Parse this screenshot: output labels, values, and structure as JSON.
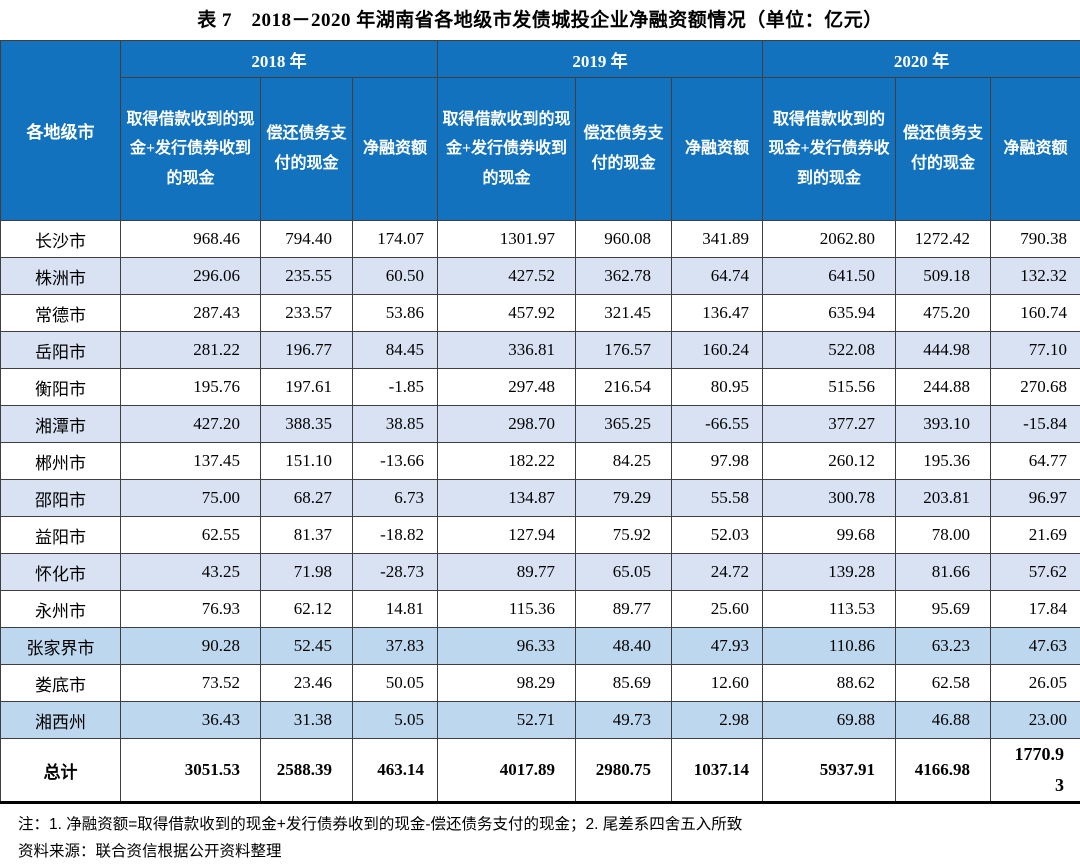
{
  "title": "表 7　2018－2020 年湖南省各地级市发债城投企业净融资额情况（单位：亿元）",
  "table": {
    "corner_header": "各地级市",
    "year_groups": [
      "2018 年",
      "2019 年",
      "2020 年"
    ],
    "sub_headers": [
      "取得借款收到的现金+发行债券收到的现金",
      "偿还债务支付的现金",
      "净融资额"
    ],
    "rows": [
      {
        "name": "长沙市",
        "tint": "white",
        "values": [
          "968.46",
          "794.40",
          "174.07",
          "1301.97",
          "960.08",
          "341.89",
          "2062.80",
          "1272.42",
          "790.38"
        ]
      },
      {
        "name": "株洲市",
        "tint": "light",
        "values": [
          "296.06",
          "235.55",
          "60.50",
          "427.52",
          "362.78",
          "64.74",
          "641.50",
          "509.18",
          "132.32"
        ]
      },
      {
        "name": "常德市",
        "tint": "white",
        "values": [
          "287.43",
          "233.57",
          "53.86",
          "457.92",
          "321.45",
          "136.47",
          "635.94",
          "475.20",
          "160.74"
        ]
      },
      {
        "name": "岳阳市",
        "tint": "light",
        "values": [
          "281.22",
          "196.77",
          "84.45",
          "336.81",
          "176.57",
          "160.24",
          "522.08",
          "444.98",
          "77.10"
        ]
      },
      {
        "name": "衡阳市",
        "tint": "white",
        "values": [
          "195.76",
          "197.61",
          "-1.85",
          "297.48",
          "216.54",
          "80.95",
          "515.56",
          "244.88",
          "270.68"
        ]
      },
      {
        "name": "湘潭市",
        "tint": "light",
        "values": [
          "427.20",
          "388.35",
          "38.85",
          "298.70",
          "365.25",
          "-66.55",
          "377.27",
          "393.10",
          "-15.84"
        ]
      },
      {
        "name": "郴州市",
        "tint": "white",
        "values": [
          "137.45",
          "151.10",
          "-13.66",
          "182.22",
          "84.25",
          "97.98",
          "260.12",
          "195.36",
          "64.77"
        ]
      },
      {
        "name": "邵阳市",
        "tint": "light",
        "values": [
          "75.00",
          "68.27",
          "6.73",
          "134.87",
          "79.29",
          "55.58",
          "300.78",
          "203.81",
          "96.97"
        ]
      },
      {
        "name": "益阳市",
        "tint": "white",
        "values": [
          "62.55",
          "81.37",
          "-18.82",
          "127.94",
          "75.92",
          "52.03",
          "99.68",
          "78.00",
          "21.69"
        ]
      },
      {
        "name": "怀化市",
        "tint": "light",
        "values": [
          "43.25",
          "71.98",
          "-28.73",
          "89.77",
          "65.05",
          "24.72",
          "139.28",
          "81.66",
          "57.62"
        ]
      },
      {
        "name": "永州市",
        "tint": "white",
        "values": [
          "76.93",
          "62.12",
          "14.81",
          "115.36",
          "89.77",
          "25.60",
          "113.53",
          "95.69",
          "17.84"
        ]
      },
      {
        "name": "张家界市",
        "tint": "blue",
        "values": [
          "90.28",
          "52.45",
          "37.83",
          "96.33",
          "48.40",
          "47.93",
          "110.86",
          "63.23",
          "47.63"
        ]
      },
      {
        "name": "娄底市",
        "tint": "white",
        "values": [
          "73.52",
          "23.46",
          "50.05",
          "98.29",
          "85.69",
          "12.60",
          "88.62",
          "62.58",
          "26.05"
        ]
      },
      {
        "name": "湘西州",
        "tint": "blue",
        "values": [
          "36.43",
          "31.38",
          "5.05",
          "52.71",
          "49.73",
          "2.98",
          "69.88",
          "46.88",
          "23.00"
        ]
      }
    ],
    "total_row": {
      "name": "总计",
      "values": [
        "3051.53",
        "2588.39",
        "463.14",
        "4017.89",
        "2980.75",
        "1037.14",
        "5937.91",
        "4166.98",
        "1770.93"
      ]
    }
  },
  "notes": {
    "note1": "注：1. 净融资额=取得借款收到的现金+发行债券收到的现金-偿还债务支付的现金；2. 尾差系四舍五入所致",
    "source": "资料来源：联合资信根据公开资料整理"
  },
  "colors": {
    "header_bg": "#1272BD",
    "stripe_light": "#D9E2F3",
    "stripe_blue": "#BDD7EE",
    "border": "#3F3F3F"
  }
}
